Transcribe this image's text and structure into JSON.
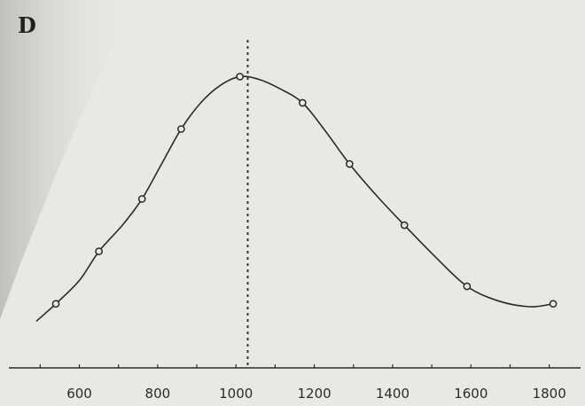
{
  "panel_label": "D",
  "chart_data": {
    "type": "line",
    "x_ticks": [
      600,
      800,
      1000,
      1200,
      1400,
      1600,
      1800
    ],
    "xlim": [
      420,
      1880
    ],
    "ylim": [
      0,
      1.05
    ],
    "grid": false,
    "marker": "open-circle",
    "peak_x": 1000,
    "reference_line": {
      "x": 1030,
      "style": "dotted"
    },
    "points": [
      {
        "x": 540,
        "y": 0.22
      },
      {
        "x": 650,
        "y": 0.4
      },
      {
        "x": 760,
        "y": 0.58
      },
      {
        "x": 860,
        "y": 0.82
      },
      {
        "x": 1010,
        "y": 1.0
      },
      {
        "x": 1170,
        "y": 0.91
      },
      {
        "x": 1290,
        "y": 0.7
      },
      {
        "x": 1430,
        "y": 0.49
      },
      {
        "x": 1590,
        "y": 0.28
      },
      {
        "x": 1810,
        "y": 0.22
      }
    ],
    "curve": [
      {
        "x": 490,
        "y": 0.16
      },
      {
        "x": 540,
        "y": 0.22
      },
      {
        "x": 600,
        "y": 0.3
      },
      {
        "x": 650,
        "y": 0.4
      },
      {
        "x": 710,
        "y": 0.49
      },
      {
        "x": 760,
        "y": 0.58
      },
      {
        "x": 810,
        "y": 0.7
      },
      {
        "x": 860,
        "y": 0.82
      },
      {
        "x": 910,
        "y": 0.91
      },
      {
        "x": 960,
        "y": 0.97
      },
      {
        "x": 1010,
        "y": 1.0
      },
      {
        "x": 1060,
        "y": 0.99
      },
      {
        "x": 1110,
        "y": 0.96
      },
      {
        "x": 1170,
        "y": 0.91
      },
      {
        "x": 1230,
        "y": 0.81
      },
      {
        "x": 1290,
        "y": 0.7
      },
      {
        "x": 1360,
        "y": 0.59
      },
      {
        "x": 1430,
        "y": 0.49
      },
      {
        "x": 1510,
        "y": 0.38
      },
      {
        "x": 1590,
        "y": 0.28
      },
      {
        "x": 1670,
        "y": 0.23
      },
      {
        "x": 1750,
        "y": 0.21
      },
      {
        "x": 1810,
        "y": 0.22
      }
    ]
  }
}
